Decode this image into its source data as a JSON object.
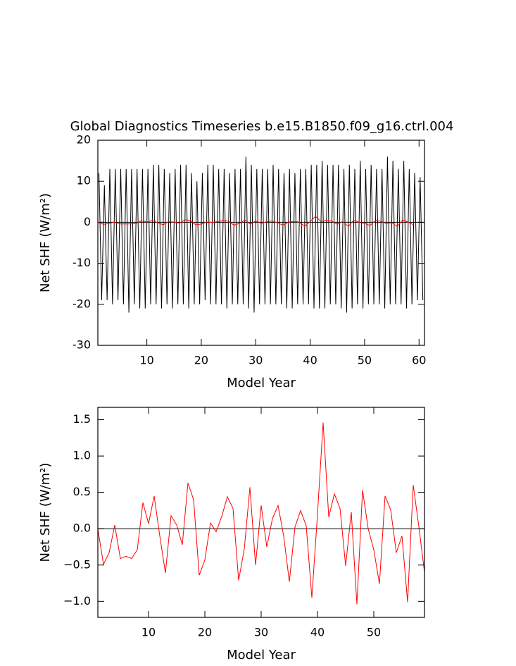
{
  "chart_data": [
    {
      "type": "line",
      "title": "Global Diagnostics Timeseries b.e15.B1850.f09_g16.ctrl.004",
      "xlabel": "Model Year",
      "ylabel": "Net SHF (W/m²)",
      "xlim": [
        1,
        61
      ],
      "ylim": [
        -30,
        20
      ],
      "xticks": [
        10,
        20,
        30,
        40,
        50,
        60
      ],
      "yticks": [
        -30,
        -20,
        -10,
        0,
        10,
        20
      ],
      "reference_line": 0,
      "series": [
        {
          "color": "#000000",
          "x": [
            1.2,
            1.7,
            2.2,
            2.7,
            3.2,
            3.7,
            4.2,
            4.7,
            5.2,
            5.7,
            6.2,
            6.7,
            7.2,
            7.7,
            8.2,
            8.7,
            9.2,
            9.7,
            10.2,
            10.7,
            11.2,
            11.7,
            12.2,
            12.7,
            13.2,
            13.7,
            14.2,
            14.7,
            15.2,
            15.7,
            16.2,
            16.7,
            17.2,
            17.7,
            18.2,
            18.7,
            19.2,
            19.7,
            20.2,
            20.7,
            21.2,
            21.7,
            22.2,
            22.7,
            23.2,
            23.7,
            24.2,
            24.7,
            25.2,
            25.7,
            26.2,
            26.7,
            27.2,
            27.7,
            28.2,
            28.7,
            29.2,
            29.7,
            30.2,
            30.7,
            31.2,
            31.7,
            32.2,
            32.7,
            33.2,
            33.7,
            34.2,
            34.7,
            35.2,
            35.7,
            36.2,
            36.7,
            37.2,
            37.7,
            38.2,
            38.7,
            39.2,
            39.7,
            40.2,
            40.7,
            41.2,
            41.7,
            42.2,
            42.7,
            43.2,
            43.7,
            44.2,
            44.7,
            45.2,
            45.7,
            46.2,
            46.7,
            47.2,
            47.7,
            48.2,
            48.7,
            49.2,
            49.7,
            50.2,
            50.7,
            51.2,
            51.7,
            52.2,
            52.7,
            53.2,
            53.7,
            54.2,
            54.7,
            55.2,
            55.7,
            56.2,
            56.7,
            57.2,
            57.7,
            58.2,
            58.7,
            59.2,
            59.7,
            60.2,
            60.7
          ],
          "values": [
            12,
            -19,
            9,
            -19,
            13,
            -20,
            13,
            -19,
            13,
            -20,
            13,
            -22,
            13,
            -20,
            13,
            -21,
            13,
            -21,
            13,
            -20,
            14,
            -20,
            14,
            -21,
            13,
            -20,
            12,
            -21,
            13,
            -20,
            14,
            -20,
            14,
            -21,
            12,
            -20,
            10,
            -20,
            12,
            -19,
            14,
            -20,
            14,
            -20,
            13,
            -20,
            13,
            -21,
            12,
            -20,
            13,
            -20,
            13,
            -20,
            16,
            -21,
            14,
            -22,
            13,
            -20,
            13,
            -20,
            13,
            -20,
            14,
            -20,
            13,
            -20,
            12,
            -21,
            13,
            -21,
            12,
            -20,
            13,
            -20,
            13,
            -20,
            14,
            -21,
            14,
            -21,
            15,
            -21,
            14,
            -20,
            14,
            -20,
            14,
            -21,
            13,
            -22,
            14,
            -21,
            13,
            -20,
            15,
            -21,
            13,
            -20,
            14,
            -20,
            13,
            -20,
            13,
            -21,
            16,
            -20,
            15,
            -20,
            13,
            -20,
            15,
            -21,
            13,
            -20,
            12,
            -19,
            11,
            -19
          ]
        },
        {
          "color": "#ff0000",
          "x": [
            1,
            2,
            3,
            4,
            5,
            6,
            7,
            8,
            9,
            10,
            11,
            12,
            13,
            14,
            15,
            16,
            17,
            18,
            19,
            20,
            21,
            22,
            23,
            24,
            25,
            26,
            27,
            28,
            29,
            30,
            31,
            32,
            33,
            34,
            35,
            36,
            37,
            38,
            39,
            40,
            41,
            42,
            43,
            44,
            45,
            46,
            47,
            48,
            49,
            50,
            51,
            52,
            53,
            54,
            55,
            56,
            57,
            58,
            59
          ],
          "values": [
            0.0,
            -0.49,
            -0.33,
            0.05,
            -0.41,
            -0.38,
            -0.41,
            -0.29,
            0.36,
            0.07,
            0.45,
            -0.1,
            -0.61,
            0.18,
            0.05,
            -0.22,
            0.63,
            0.4,
            -0.64,
            -0.43,
            0.08,
            -0.04,
            0.17,
            0.44,
            0.28,
            -0.71,
            -0.28,
            0.57,
            -0.5,
            0.32,
            -0.25,
            0.14,
            0.32,
            -0.1,
            -0.73,
            0.02,
            0.25,
            0.04,
            -0.95,
            0.2,
            1.46,
            0.16,
            0.48,
            0.28,
            -0.51,
            0.23,
            -1.04,
            0.53,
            0.0,
            -0.29,
            -0.76,
            0.45,
            0.26,
            -0.33,
            -0.1,
            -1.01,
            0.6,
            0.03,
            -0.6
          ]
        }
      ]
    },
    {
      "type": "line",
      "xlabel": "Model Year",
      "ylabel": "Net SHF (W/m²)",
      "xlim": [
        1,
        59
      ],
      "ylim": [
        -1.22,
        1.67
      ],
      "xticks": [
        10,
        20,
        30,
        40,
        50
      ],
      "yticks": [
        {
          "value": -1.0,
          "label": "−1.0"
        },
        {
          "value": -0.5,
          "label": "−0.5"
        },
        {
          "value": 0.0,
          "label": "0.0"
        },
        0.5,
        {
          "value": 1.0,
          "label": "1.0"
        },
        1.5
      ],
      "reference_line": 0,
      "series": [
        {
          "color": "#ff0000",
          "x": [
            1,
            2,
            3,
            4,
            5,
            6,
            7,
            8,
            9,
            10,
            11,
            12,
            13,
            14,
            15,
            16,
            17,
            18,
            19,
            20,
            21,
            22,
            23,
            24,
            25,
            26,
            27,
            28,
            29,
            30,
            31,
            32,
            33,
            34,
            35,
            36,
            37,
            38,
            39,
            40,
            41,
            42,
            43,
            44,
            45,
            46,
            47,
            48,
            49,
            50,
            51,
            52,
            53,
            54,
            55,
            56,
            57,
            58,
            59
          ],
          "values": [
            0.0,
            -0.49,
            -0.33,
            0.05,
            -0.41,
            -0.38,
            -0.41,
            -0.29,
            0.36,
            0.07,
            0.45,
            -0.1,
            -0.61,
            0.18,
            0.05,
            -0.22,
            0.63,
            0.4,
            -0.64,
            -0.43,
            0.08,
            -0.04,
            0.17,
            0.44,
            0.28,
            -0.71,
            -0.28,
            0.57,
            -0.5,
            0.32,
            -0.25,
            0.14,
            0.32,
            -0.1,
            -0.73,
            0.02,
            0.25,
            0.04,
            -0.95,
            0.2,
            1.46,
            0.16,
            0.48,
            0.28,
            -0.51,
            0.23,
            -1.04,
            0.53,
            0.0,
            -0.29,
            -0.76,
            0.45,
            0.26,
            -0.33,
            -0.1,
            -1.01,
            0.6,
            0.03,
            -0.6
          ]
        }
      ]
    }
  ]
}
